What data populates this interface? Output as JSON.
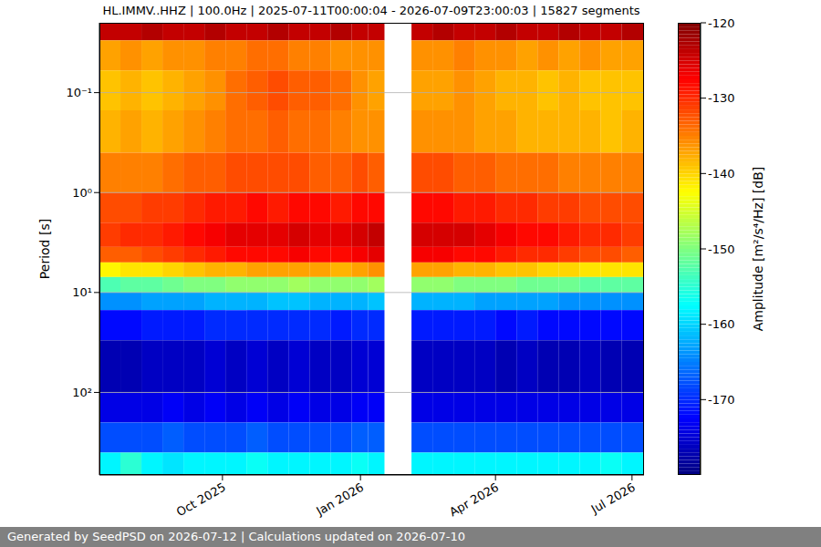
{
  "chart_data": {
    "type": "heatmap",
    "title": "HL.IMMV..HHZ | 100.0Hz | 2025-07-11T00:00:04 - 2026-07-09T23:00:03 | 15827 segments",
    "footer": "Generated by SeedPSD on 2026-07-12 | Calculations updated on 2026-07-10",
    "ylabel": "Period [s]",
    "colorbar_label": "Amplitude [m²/s⁴/Hz] [dB]",
    "x": [
      "2025-07-11",
      "2025-07-25",
      "2025-08-08",
      "2025-08-22",
      "2025-09-05",
      "2025-09-19",
      "2025-10-03",
      "2025-10-17",
      "2025-10-31",
      "2025-11-14",
      "2025-11-28",
      "2025-12-12",
      "2025-12-26",
      "2026-01-06",
      "2026-01-17",
      "2026-02-04",
      "2026-02-18",
      "2026-03-04",
      "2026-03-18",
      "2026-04-01",
      "2026-04-15",
      "2026-04-29",
      "2026-05-13",
      "2026-05-27",
      "2026-06-10",
      "2026-06-24",
      "2026-07-09"
    ],
    "xlim": [
      "2025-07-11",
      "2026-07-09"
    ],
    "xticks": [
      {
        "value": "2025-10-01",
        "label": "Oct 2025"
      },
      {
        "value": "2026-01-01",
        "label": "Jan 2026"
      },
      {
        "value": "2026-04-01",
        "label": "Apr 2026"
      },
      {
        "value": "2026-07-01",
        "label": "Jul 2026"
      }
    ],
    "y_edges": [
      0.02,
      0.03,
      0.06,
      0.15,
      0.4,
      1,
      2,
      3.5,
      5,
      7,
      10,
      15,
      30,
      100,
      200,
      400,
      670
    ],
    "ylim": [
      0.02,
      670
    ],
    "yticks": [
      {
        "value": 0.1,
        "label": "10⁻¹"
      },
      {
        "value": 1,
        "label": "10⁰"
      },
      {
        "value": 10,
        "label": "10¹"
      },
      {
        "value": 100,
        "label": "10²"
      }
    ],
    "log": "y",
    "grid": true,
    "cells": [
      [
        -124,
        -124,
        -123,
        -124,
        -124,
        -123,
        -124,
        -124,
        -123,
        -124,
        -124,
        -123,
        -124,
        -124,
        null,
        -124,
        -123,
        -124,
        -124,
        -123,
        -124,
        -124,
        -123,
        -124,
        -124,
        -123
      ],
      [
        -137,
        -136,
        -137,
        -136,
        -136,
        -135,
        -135,
        -134,
        -134,
        -135,
        -135,
        -136,
        -136,
        -136,
        null,
        -136,
        -136,
        -135,
        -136,
        -136,
        -137,
        -136,
        -137,
        -136,
        -137,
        -137
      ],
      [
        -139,
        -138,
        -139,
        -138,
        -137,
        -136,
        -134,
        -133,
        -132,
        -133,
        -133,
        -134,
        -136,
        -137,
        null,
        -137,
        -137,
        -136,
        -137,
        -138,
        -138,
        -139,
        -138,
        -139,
        -139,
        -139
      ],
      [
        -138,
        -137,
        -138,
        -137,
        -136,
        -135,
        -134,
        -134,
        -133,
        -134,
        -134,
        -135,
        -136,
        -136,
        null,
        -136,
        -136,
        -136,
        -137,
        -137,
        -138,
        -138,
        -138,
        -138,
        -139,
        -138
      ],
      [
        -135,
        -135,
        -135,
        -134,
        -133,
        -133,
        -132,
        -132,
        -132,
        -132,
        -133,
        -133,
        -132,
        -133,
        null,
        -132,
        -132,
        -133,
        -133,
        -134,
        -134,
        -134,
        -135,
        -135,
        -135,
        -135
      ],
      [
        -132,
        -132,
        -131,
        -131,
        -130,
        -129,
        -129,
        -128,
        -129,
        -128,
        -128,
        -129,
        -128,
        -128,
        null,
        -128,
        -128,
        -129,
        -129,
        -130,
        -130,
        -131,
        -131,
        -132,
        -132,
        -132
      ],
      [
        -131,
        -130,
        -130,
        -129,
        -128,
        -127,
        -126,
        -126,
        -126,
        -125,
        -126,
        -126,
        -125,
        -124,
        null,
        -125,
        -125,
        -125,
        -126,
        -127,
        -128,
        -128,
        -129,
        -130,
        -130,
        -131
      ],
      [
        -133,
        -133,
        -132,
        -131,
        -130,
        -129,
        -128,
        -128,
        -128,
        -127,
        -128,
        -128,
        -127,
        -126,
        null,
        -127,
        -127,
        -128,
        -128,
        -129,
        -130,
        -130,
        -131,
        -132,
        -132,
        -133
      ],
      [
        -142,
        -141,
        -141,
        -140,
        -139,
        -138,
        -138,
        -137,
        -137,
        -137,
        -137,
        -138,
        -137,
        -136,
        null,
        -137,
        -137,
        -138,
        -138,
        -139,
        -139,
        -140,
        -140,
        -141,
        -141,
        -141
      ],
      [
        -153,
        -152,
        -152,
        -151,
        -150,
        -150,
        -149,
        -149,
        -149,
        -148,
        -149,
        -149,
        -149,
        -148,
        null,
        -149,
        -149,
        -150,
        -150,
        -150,
        -151,
        -151,
        -151,
        -152,
        -152,
        -152
      ],
      [
        -164,
        -164,
        -163,
        -163,
        -163,
        -162,
        -162,
        -162,
        -161,
        -161,
        -162,
        -162,
        -162,
        -161,
        null,
        -162,
        -162,
        -162,
        -163,
        -163,
        -163,
        -163,
        -164,
        -164,
        -164,
        -164
      ],
      [
        -172,
        -172,
        -171,
        -171,
        -171,
        -170,
        -170,
        -170,
        -170,
        -170,
        -170,
        -171,
        -170,
        -170,
        null,
        -171,
        -171,
        -171,
        -171,
        -172,
        -171,
        -172,
        -172,
        -172,
        -172,
        -172
      ],
      [
        -177,
        -177,
        -176,
        -176,
        -176,
        -175,
        -176,
        -175,
        -176,
        -175,
        -176,
        -176,
        -175,
        -175,
        null,
        -176,
        -176,
        -176,
        -176,
        -177,
        -176,
        -177,
        -177,
        -176,
        -177,
        -177
      ],
      [
        -174,
        -174,
        -174,
        -173,
        -174,
        -173,
        -174,
        -173,
        -174,
        -173,
        -174,
        -174,
        -173,
        -173,
        null,
        -174,
        -174,
        -174,
        -174,
        -174,
        -174,
        -174,
        -174,
        -174,
        -174,
        -174
      ],
      [
        -168,
        -168,
        -168,
        -167,
        -168,
        -168,
        -168,
        -167,
        -168,
        -168,
        -168,
        -168,
        -167,
        -167,
        null,
        -168,
        -168,
        -168,
        -168,
        -168,
        -168,
        -168,
        -168,
        -168,
        -168,
        -168
      ],
      [
        -158,
        -155,
        -158,
        -159,
        -158,
        -158,
        -158,
        -157,
        -158,
        -158,
        -158,
        -158,
        -157,
        -158,
        null,
        -158,
        -158,
        -158,
        -158,
        -158,
        -158,
        -158,
        -158,
        -158,
        -157,
        -158
      ]
    ],
    "clim": [
      -180,
      -120
    ],
    "cticks": [
      -170,
      -160,
      -150,
      -140,
      -130,
      -120
    ]
  }
}
